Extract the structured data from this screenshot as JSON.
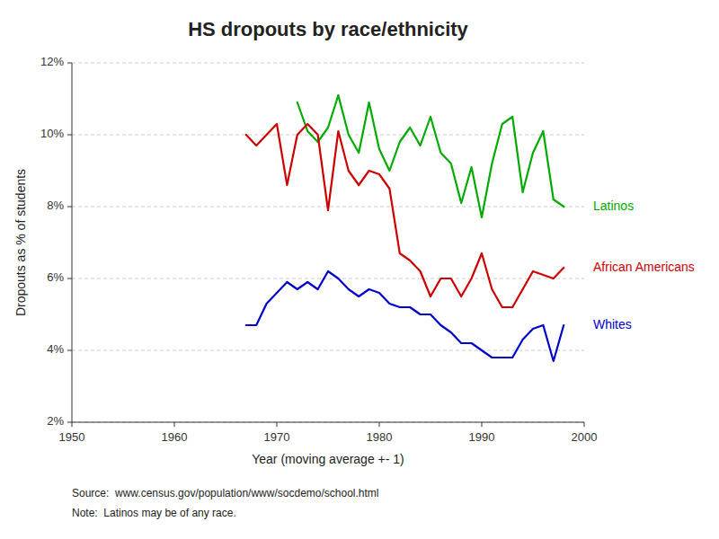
{
  "chart_data": {
    "type": "line",
    "title": "HS dropouts by race/ethnicity",
    "x_label": "Year (moving average +- 1)",
    "y_label": "Dropouts as % of students",
    "source": "Source:  www.census.gov/population/www/socdemo/school.html",
    "note": "Note:  Latinos may be of any race.",
    "xlim": [
      1950,
      2000
    ],
    "ylim": [
      0.02,
      0.12
    ],
    "xticks": [
      1950,
      1960,
      1970,
      1980,
      1990,
      2000
    ],
    "yticks": [
      {
        "value": 0.02,
        "label": "2%"
      },
      {
        "value": 0.04,
        "label": "4%"
      },
      {
        "value": 0.06,
        "label": "6%"
      },
      {
        "value": 0.08,
        "label": "8%"
      },
      {
        "value": 0.1,
        "label": "10%"
      },
      {
        "value": 0.12,
        "label": "12%"
      }
    ],
    "grid": true,
    "series": [
      {
        "name": "Latinos",
        "color": "#00aa00",
        "x": [
          1972,
          1973,
          1974,
          1975,
          1976,
          1977,
          1978,
          1979,
          1980,
          1981,
          1982,
          1983,
          1984,
          1985,
          1986,
          1987,
          1988,
          1989,
          1990,
          1991,
          1992,
          1993,
          1994,
          1995,
          1996,
          1997,
          1998
        ],
        "values": [
          0.109,
          0.101,
          0.098,
          0.102,
          0.111,
          0.1,
          0.095,
          0.109,
          0.096,
          0.09,
          0.098,
          0.102,
          0.097,
          0.105,
          0.095,
          0.092,
          0.081,
          0.091,
          0.077,
          0.092,
          0.103,
          0.105,
          0.084,
          0.095,
          0.101,
          0.082,
          0.08
        ]
      },
      {
        "name": "African Americans",
        "color": "#cc0000",
        "x": [
          1967,
          1968,
          1969,
          1970,
          1971,
          1972,
          1973,
          1974,
          1975,
          1976,
          1977,
          1978,
          1979,
          1980,
          1981,
          1982,
          1983,
          1984,
          1985,
          1986,
          1987,
          1988,
          1989,
          1990,
          1991,
          1992,
          1993,
          1994,
          1995,
          1996,
          1997,
          1998
        ],
        "values": [
          0.1,
          0.097,
          0.1,
          0.103,
          0.086,
          0.1,
          0.103,
          0.1,
          0.079,
          0.101,
          0.09,
          0.086,
          0.09,
          0.089,
          0.085,
          0.067,
          0.065,
          0.062,
          0.055,
          0.06,
          0.06,
          0.055,
          0.06,
          0.067,
          0.057,
          0.052,
          0.052,
          0.057,
          0.062,
          0.061,
          0.06,
          0.063
        ]
      },
      {
        "name": "Whites",
        "color": "#0000cc",
        "x": [
          1967,
          1968,
          1969,
          1970,
          1971,
          1972,
          1973,
          1974,
          1975,
          1976,
          1977,
          1978,
          1979,
          1980,
          1981,
          1982,
          1983,
          1984,
          1985,
          1986,
          1987,
          1988,
          1989,
          1990,
          1991,
          1992,
          1993,
          1994,
          1995,
          1996,
          1997,
          1998
        ],
        "values": [
          0.047,
          0.047,
          0.053,
          0.056,
          0.059,
          0.057,
          0.059,
          0.057,
          0.062,
          0.06,
          0.057,
          0.055,
          0.057,
          0.056,
          0.053,
          0.052,
          0.052,
          0.05,
          0.05,
          0.047,
          0.045,
          0.042,
          0.042,
          0.04,
          0.038,
          0.038,
          0.038,
          0.043,
          0.046,
          0.047,
          0.037,
          0.047
        ]
      }
    ]
  }
}
